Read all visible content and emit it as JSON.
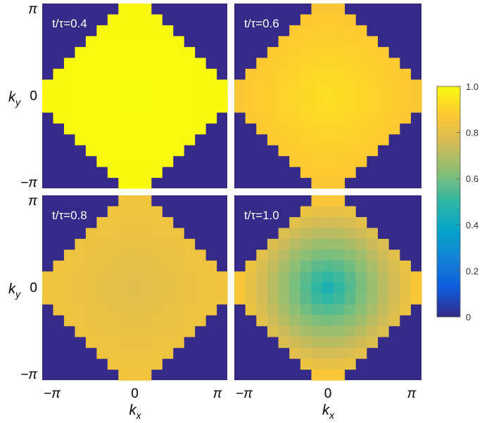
{
  "chart_data": {
    "type": "heatmap",
    "grid_size": 17,
    "x_axis": {
      "label_main": "k",
      "label_sub": "x",
      "ticks": [
        "−π",
        "0",
        "π"
      ]
    },
    "y_axis": {
      "label_main": "k",
      "label_sub": "y",
      "ticks": [
        "π",
        "0",
        "−π"
      ]
    },
    "colorbar": {
      "range": [
        0,
        1
      ],
      "ticks": [
        "0",
        "0.2",
        "0.4",
        "0.6",
        "0.8",
        "1.0"
      ],
      "colormap": [
        "#352a87",
        "#0f5cdd",
        "#1481d6",
        "#06a4ca",
        "#2eb7a4",
        "#87bf77",
        "#d1bb59",
        "#fec832",
        "#f9fb0e"
      ],
      "background_color": "#352a87"
    },
    "panels": [
      {
        "label": "t/τ=0.4",
        "center_value": 1.0,
        "edge_value": 0.995
      },
      {
        "label": "t/τ=0.6",
        "center_value": 0.93,
        "edge_value": 0.87
      },
      {
        "label": "t/τ=0.8",
        "center_value": 0.79,
        "edge_value": 0.84
      },
      {
        "label": "t/τ=1.0",
        "center_value": 0.45,
        "edge_value": 0.86
      }
    ]
  }
}
